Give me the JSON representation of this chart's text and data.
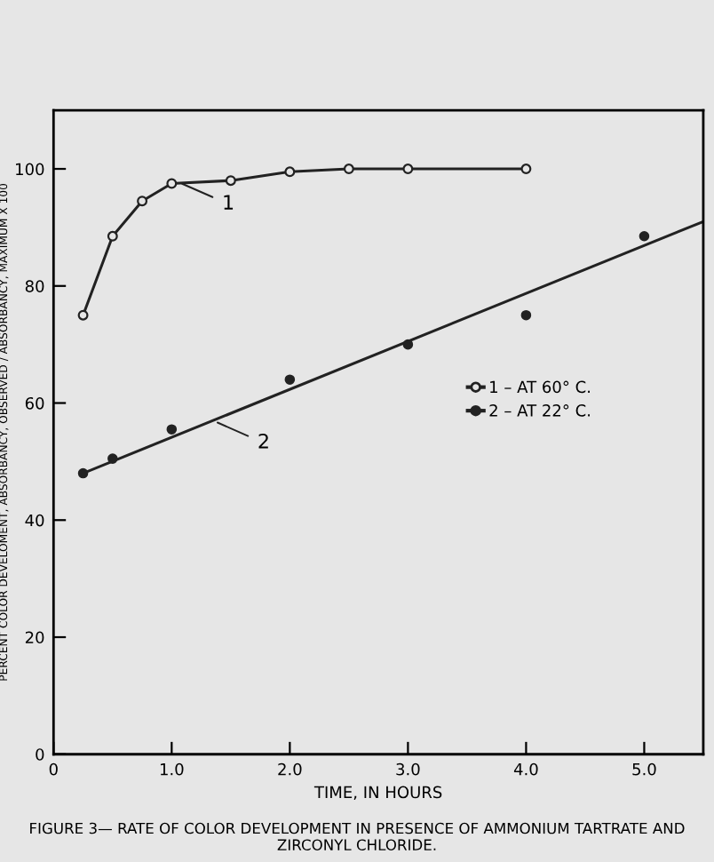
{
  "chart_data": {
    "type": "line",
    "xlabel": "TIME, IN HOURS",
    "ylabel": "PERCENT COLOR DEVELOMENT, ABSORBANCY, OBSERVED / ABSORBANCY, MAXIMUM X 100",
    "series": [
      {
        "name": "1 – AT 60° C.",
        "marker": "circle",
        "color": "#222222",
        "x": [
          0.25,
          0.5,
          0.75,
          1.0,
          1.5,
          2.0,
          2.5,
          3.0,
          4.0
        ],
        "values": [
          75,
          88.5,
          94.5,
          97.5,
          98,
          99.5,
          100,
          100,
          100
        ]
      },
      {
        "name": "2 – AT 22° C.",
        "type": "scatter",
        "marker": "circle",
        "color": "#222222",
        "x": [
          0.25,
          0.5,
          1.0,
          2.0,
          3.0,
          4.0,
          5.0
        ],
        "values": [
          48,
          50.5,
          55.5,
          64,
          70,
          75,
          88.5
        ]
      },
      {
        "marker": "none",
        "color": "#222222",
        "x": [
          0.25,
          5.5
        ],
        "values": [
          48,
          91
        ]
      }
    ],
    "xlim": [
      0,
      5.5
    ],
    "ylim": [
      0,
      110
    ],
    "xticks": [
      0,
      {
        "value": 1,
        "label": "1.0"
      },
      {
        "value": 2,
        "label": "2.0"
      },
      {
        "value": 3,
        "label": "3.0"
      },
      {
        "value": 4,
        "label": "4.0"
      },
      {
        "value": 5,
        "label": "5.0"
      }
    ],
    "yticks": [
      0,
      20,
      40,
      60,
      80,
      100
    ],
    "annotations": [
      {
        "text": "1",
        "x": 1.05,
        "y": 97.8
      },
      {
        "text": "2",
        "x": 1.35,
        "y": 57
      },
      "FIGURE 3— RATE OF COLOR DEVELOPMENT IN PRESENCE OF AMMONIUM TARTRATE AND ZIRCONYL CHLORIDE."
    ],
    "grid": false,
    "legend": "right",
    "line_style": "solid"
  }
}
